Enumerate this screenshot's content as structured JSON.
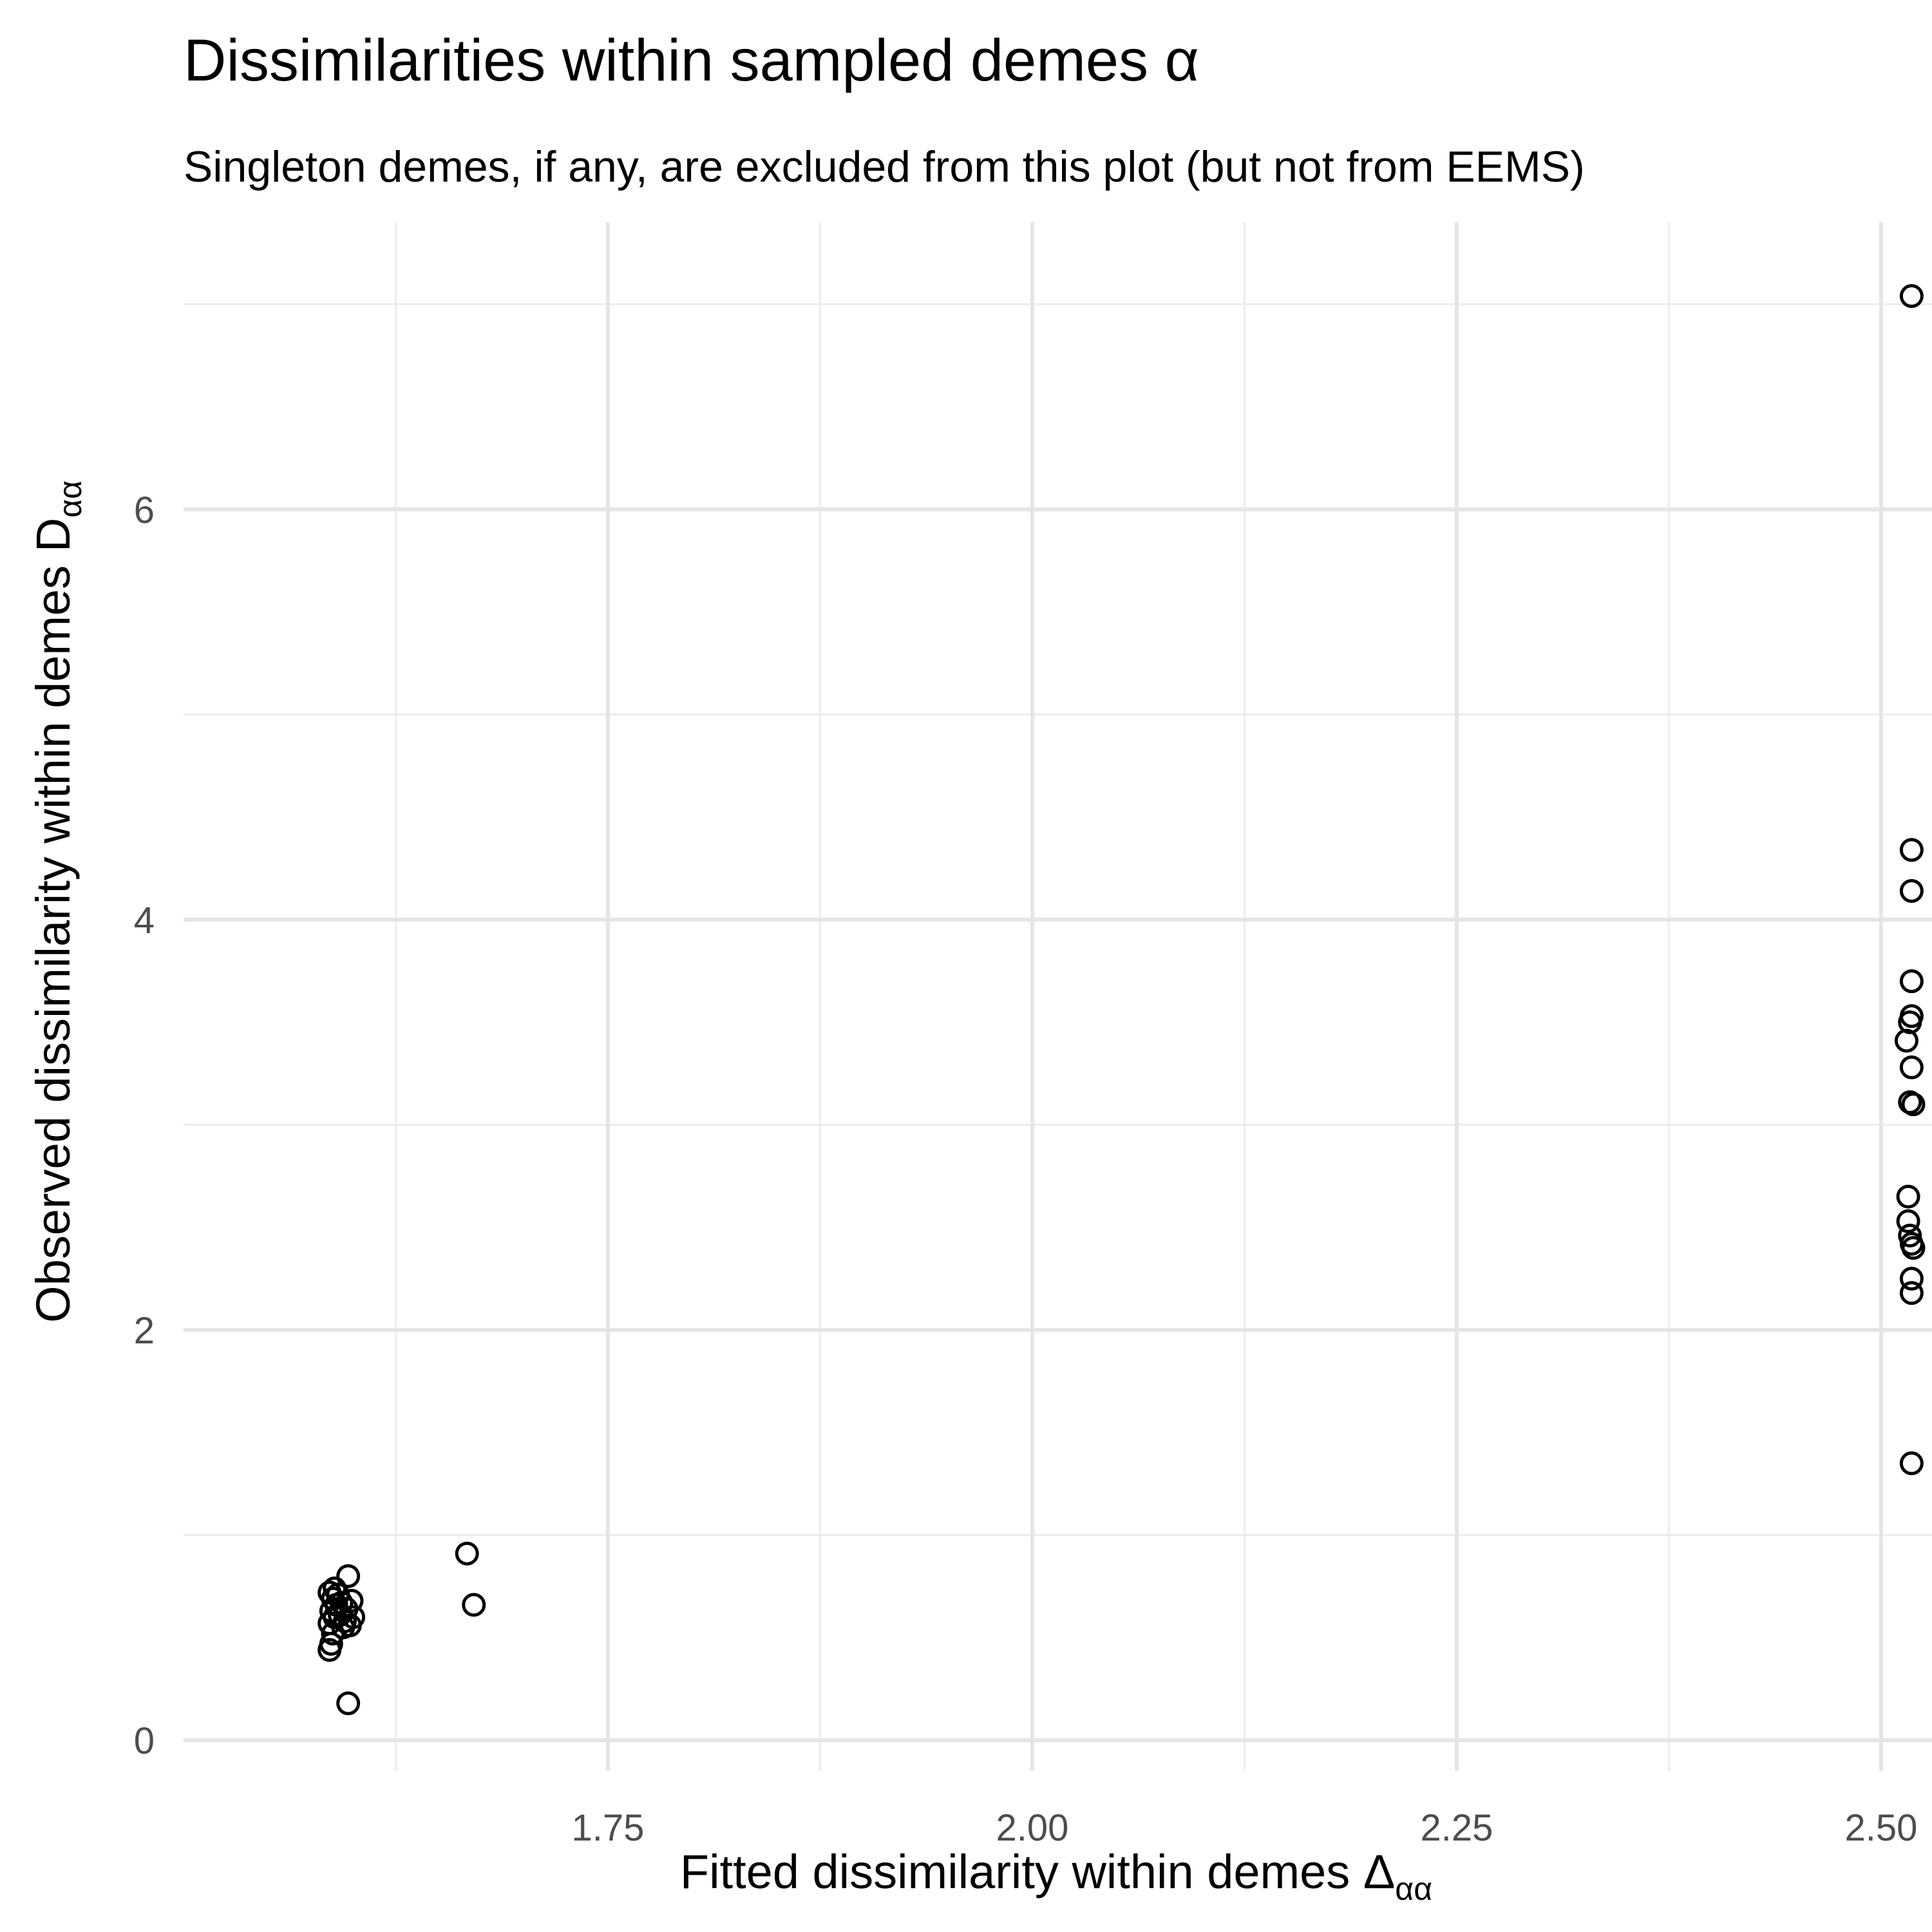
{
  "chart_data": {
    "type": "scatter",
    "title": "Dissimilarities within sampled demes α",
    "subtitle": "Singleton demes, if any, are excluded from  this plot (but not from EEMS)",
    "xlabel": {
      "text": "Fitted dissimilarity within demes  Δ",
      "subscript": "αα"
    },
    "ylabel": {
      "text": "Observed dissimilarity within demes D",
      "subscript": "αα"
    },
    "xlim": [
      1.5,
      2.53
    ],
    "ylim": [
      -0.15,
      7.4
    ],
    "x_ticks": [
      1.75,
      2.0,
      2.25,
      2.5
    ],
    "x_tick_labels": [
      "1.75",
      "2.00",
      "2.25",
      "2.50"
    ],
    "y_ticks": [
      0,
      2,
      4,
      6
    ],
    "y_tick_labels": [
      "0",
      "2",
      "4",
      "6"
    ],
    "grid": true,
    "points": [
      {
        "x": 1.586,
        "y": 0.44
      },
      {
        "x": 1.587,
        "y": 0.47
      },
      {
        "x": 1.588,
        "y": 0.52
      },
      {
        "x": 1.586,
        "y": 0.57
      },
      {
        "x": 1.589,
        "y": 0.6
      },
      {
        "x": 1.587,
        "y": 0.63
      },
      {
        "x": 1.59,
        "y": 0.66
      },
      {
        "x": 1.588,
        "y": 0.69
      },
      {
        "x": 1.586,
        "y": 0.72
      },
      {
        "x": 1.589,
        "y": 0.74
      },
      {
        "x": 1.591,
        "y": 0.71
      },
      {
        "x": 1.593,
        "y": 0.67
      },
      {
        "x": 1.592,
        "y": 0.61
      },
      {
        "x": 1.595,
        "y": 0.58
      },
      {
        "x": 1.594,
        "y": 0.55
      },
      {
        "x": 1.598,
        "y": 0.56
      },
      {
        "x": 1.6,
        "y": 0.6
      },
      {
        "x": 1.599,
        "y": 0.68
      },
      {
        "x": 1.596,
        "y": 0.64
      },
      {
        "x": 1.597,
        "y": 0.8
      },
      {
        "x": 1.597,
        "y": 0.18
      },
      {
        "x": 1.667,
        "y": 0.91
      },
      {
        "x": 1.671,
        "y": 0.66
      },
      {
        "x": 2.518,
        "y": 7.04
      },
      {
        "x": 2.518,
        "y": 4.34
      },
      {
        "x": 2.518,
        "y": 4.14
      },
      {
        "x": 2.518,
        "y": 3.7
      },
      {
        "x": 2.518,
        "y": 3.53
      },
      {
        "x": 2.517,
        "y": 3.5
      },
      {
        "x": 2.515,
        "y": 3.41
      },
      {
        "x": 2.518,
        "y": 3.28
      },
      {
        "x": 2.517,
        "y": 3.11
      },
      {
        "x": 2.519,
        "y": 3.1
      },
      {
        "x": 2.516,
        "y": 2.65
      },
      {
        "x": 2.516,
        "y": 2.53
      },
      {
        "x": 2.517,
        "y": 2.46
      },
      {
        "x": 2.518,
        "y": 2.42
      },
      {
        "x": 2.519,
        "y": 2.4
      },
      {
        "x": 2.518,
        "y": 2.25
      },
      {
        "x": 2.518,
        "y": 2.18
      },
      {
        "x": 2.518,
        "y": 1.35
      }
    ]
  }
}
